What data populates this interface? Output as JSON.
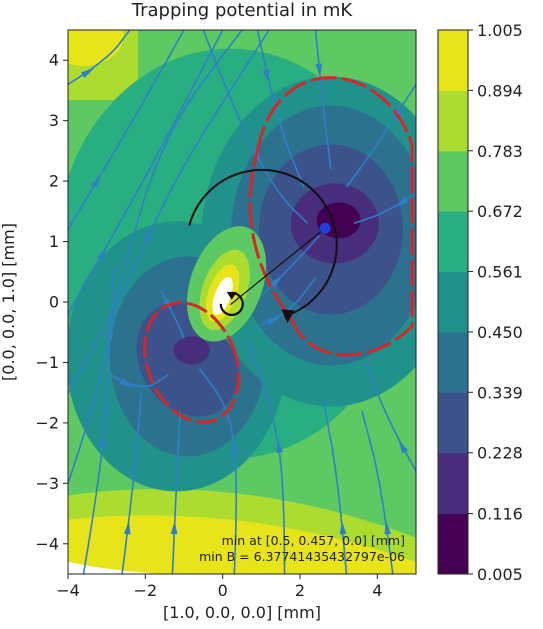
{
  "chart_data": {
    "type": "heatmap",
    "title": "Trapping potential in mK",
    "xlabel": "[1.0, 0.0, 0.0] [mm]",
    "ylabel": "[0.0, 0.0, 1.0] [mm]",
    "xlim": [
      -4,
      5
    ],
    "ylim": [
      -4.5,
      4.5
    ],
    "xticks": [
      "−4",
      "−2",
      "0",
      "2",
      "4"
    ],
    "xtick_values": [
      -4,
      -2,
      0,
      2,
      4
    ],
    "yticks": [
      "−4",
      "−3",
      "−2",
      "−1",
      "0",
      "1",
      "2",
      "3",
      "4"
    ],
    "ytick_values": [
      -4,
      -3,
      -2,
      -1,
      0,
      1,
      2,
      3,
      4
    ],
    "colorbar": {
      "ticks": [
        "0.005",
        "0.116",
        "0.228",
        "0.339",
        "0.450",
        "0.561",
        "0.672",
        "0.783",
        "0.894",
        "1.005"
      ],
      "tick_values": [
        0.005,
        0.116,
        0.228,
        0.339,
        0.45,
        0.561,
        0.672,
        0.783,
        0.894,
        1.005
      ],
      "colors": [
        "#440154",
        "#472d7b",
        "#3b528b",
        "#2c728e",
        "#21918c",
        "#28ae80",
        "#5ec962",
        "#addc30",
        "#e7e419"
      ]
    },
    "minimum_point": [
      0.5,
      0.457
    ],
    "annotation_lines": [
      "min at [0.5, 0.457, 0.0] [mm]",
      "min B = 6.37741435432797e-06"
    ],
    "stream_color": "#2e7fc8",
    "contour_color": "#d62728",
    "marker_color": "#1f3fd8",
    "grid": false,
    "colormap": "viridis"
  }
}
